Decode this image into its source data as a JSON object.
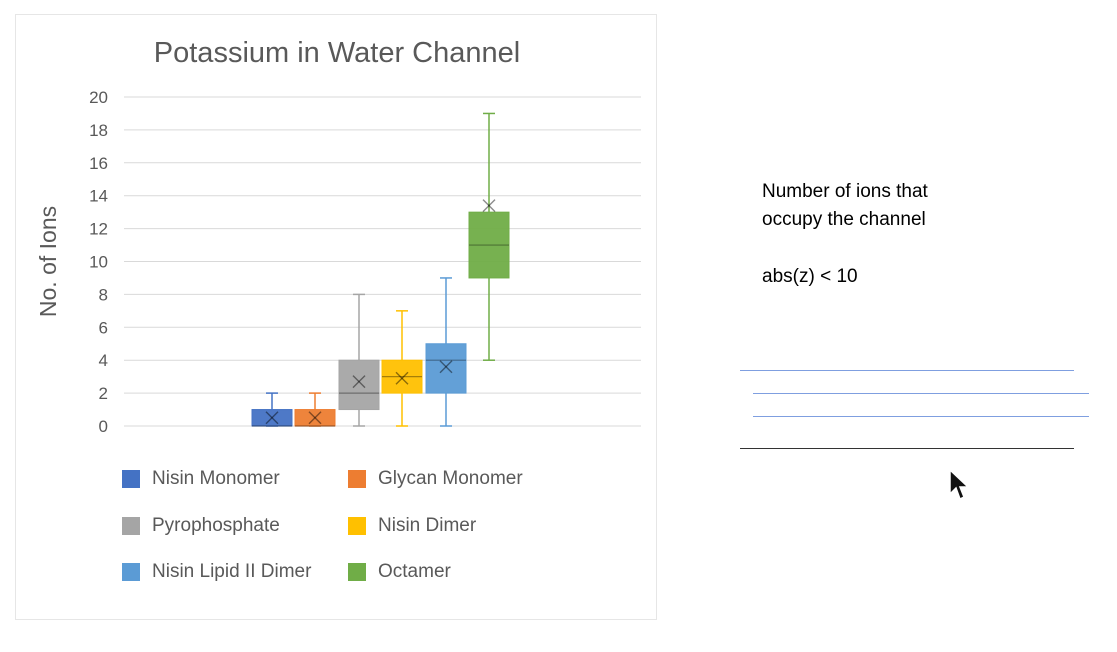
{
  "chart_data": {
    "type": "box",
    "title": "Potassium in Water Channel",
    "ylabel": "No. of Ions",
    "xlabel": "",
    "ylim": [
      0,
      20
    ],
    "yticks": [
      0,
      2,
      4,
      6,
      8,
      10,
      12,
      14,
      16,
      18,
      20
    ],
    "grid": true,
    "legend_position": "bottom",
    "series": [
      {
        "name": "Nisin Monomer",
        "color": "#4472C4",
        "min": 0,
        "q1": 0,
        "median": 0,
        "q3": 1,
        "max": 2,
        "mean": 0.5
      },
      {
        "name": "Glycan Monomer",
        "color": "#ED7D31",
        "min": 0,
        "q1": 0,
        "median": 0,
        "q3": 1,
        "max": 2,
        "mean": 0.5
      },
      {
        "name": "Pyrophosphate",
        "color": "#A5A5A5",
        "min": 0,
        "q1": 1,
        "median": 2,
        "q3": 4,
        "max": 8,
        "mean": 2.7
      },
      {
        "name": "Nisin Dimer",
        "color": "#FFC000",
        "min": 0,
        "q1": 2,
        "median": 3,
        "q3": 4,
        "max": 7,
        "mean": 2.9
      },
      {
        "name": "Nisin Lipid II Dimer",
        "color": "#5B9BD5",
        "min": 0,
        "q1": 2,
        "median": 4,
        "q3": 5,
        "max": 9,
        "mean": 3.6
      },
      {
        "name": "Octamer",
        "color": "#70AD47",
        "min": 4,
        "q1": 9,
        "median": 11,
        "q3": 13,
        "max": 19,
        "mean": 13.4
      }
    ]
  },
  "note": {
    "line1": "Number of ions that",
    "line2": "occupy the channel",
    "condition": "abs(z) < 10"
  },
  "colors": {
    "rule_blue": "#7f9fe0",
    "rule_dark": "#333333"
  }
}
